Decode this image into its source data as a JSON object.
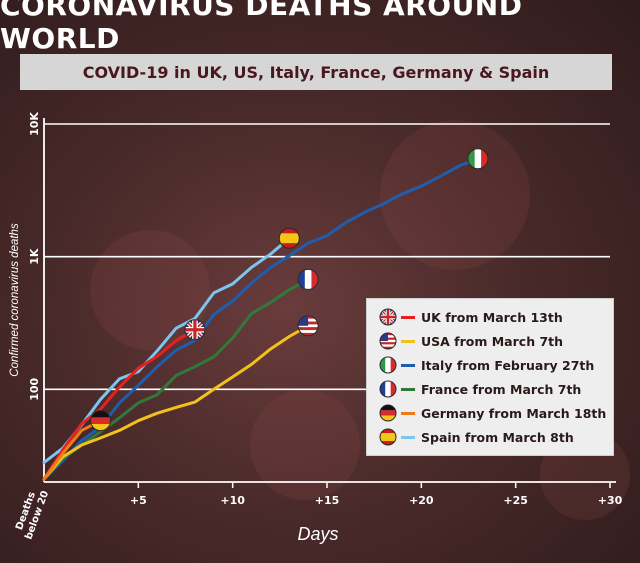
{
  "headline": "CORONAVIRUS DEATHS AROUND WORLD",
  "subtitle": "COVID-19 in UK, US, Italy, France, Germany & Spain",
  "chart_data": {
    "type": "line",
    "xlabel": "Days",
    "ylabel": "Confirmed coronavirus deaths",
    "y_scale": "log",
    "ylim": [
      20,
      10000
    ],
    "xlim": [
      0,
      30
    ],
    "x_ticks": [
      "+5",
      "+10",
      "+15",
      "+20",
      "+25",
      "+30"
    ],
    "y_ticks": [
      "100",
      "1K",
      "10K"
    ],
    "origin_label": "Deaths below 20",
    "grid": true,
    "legend_position": "bottom-right",
    "series": [
      {
        "name": "UK from March 13th",
        "color": "#e32222",
        "flag": "uk",
        "x": [
          0,
          1,
          2,
          3,
          4,
          5,
          6,
          7,
          8
        ],
        "y": [
          21,
          35,
          55,
          71,
          104,
          144,
          177,
          233,
          281
        ]
      },
      {
        "name": "USA from March 7th",
        "color": "#f2c21a",
        "flag": "usa",
        "x": [
          0,
          1,
          2,
          3,
          4,
          5,
          6,
          7,
          8,
          9,
          10,
          11,
          12,
          13,
          14
        ],
        "y": [
          21,
          31,
          38,
          43,
          49,
          58,
          66,
          73,
          80,
          100,
          124,
          154,
          201,
          250,
          301
        ]
      },
      {
        "name": "Italy from February 27th",
        "color": "#1f5dae",
        "flag": "italy",
        "x": [
          0,
          1,
          2,
          3,
          4,
          5,
          6,
          7,
          8,
          9,
          10,
          11,
          12,
          13,
          14,
          15,
          16,
          17,
          18,
          19,
          20,
          21,
          22,
          23
        ],
        "y": [
          21,
          29,
          41,
          52,
          79,
          107,
          148,
          197,
          233,
          366,
          463,
          631,
          827,
          1016,
          1266,
          1441,
          1809,
          2158,
          2503,
          2978,
          3405,
          4032,
          4825,
          5476
        ]
      },
      {
        "name": "France from March 7th",
        "color": "#2f7a3b",
        "flag": "france",
        "x": [
          0,
          1,
          2,
          3,
          4,
          5,
          6,
          7,
          8,
          9,
          10,
          11,
          12,
          13,
          14
        ],
        "y": [
          21,
          30,
          38,
          48,
          61,
          79,
          91,
          127,
          148,
          175,
          244,
          372,
          450,
          562,
          674
        ]
      },
      {
        "name": "Germany from March 18th",
        "color": "#f07a1a",
        "flag": "germany",
        "x": [
          0,
          1,
          2,
          3
        ],
        "y": [
          21,
          33,
          49,
          58
        ]
      },
      {
        "name": "Spain from March 8th",
        "color": "#7cc6ee",
        "flag": "spain",
        "x": [
          0,
          1,
          2,
          3,
          4,
          5,
          6,
          7,
          8,
          9,
          10,
          11,
          12,
          13
        ],
        "y": [
          28,
          36,
          54,
          84,
          120,
          136,
          195,
          289,
          342,
          533,
          623,
          830,
          1043,
          1375
        ]
      }
    ]
  }
}
